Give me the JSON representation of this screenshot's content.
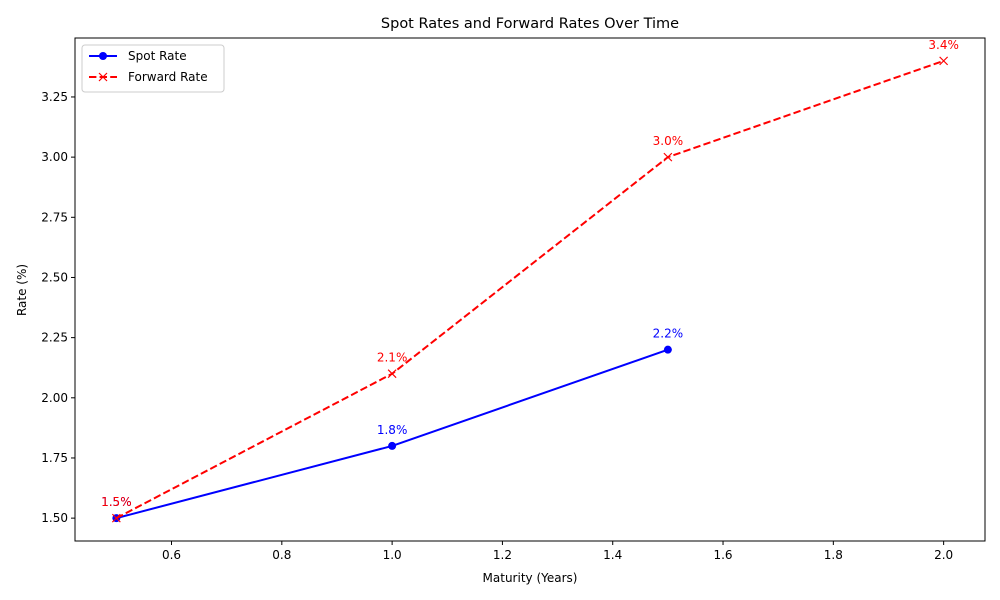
{
  "chart_data": {
    "type": "line",
    "title": "Spot Rates and Forward Rates Over Time",
    "xlabel": "Maturity (Years)",
    "ylabel": "Rate (%)",
    "xlim": [
      0.425,
      2.075
    ],
    "ylim": [
      1.405,
      3.495
    ],
    "x_ticks": [
      0.6,
      0.8,
      1.0,
      1.2,
      1.4,
      1.6,
      1.8,
      2.0
    ],
    "x_tick_labels": [
      "0.6",
      "0.8",
      "1.0",
      "1.2",
      "1.4",
      "1.6",
      "1.8",
      "2.0"
    ],
    "y_ticks": [
      1.5,
      1.75,
      2.0,
      2.25,
      2.5,
      2.75,
      3.0,
      3.25
    ],
    "y_tick_labels": [
      "1.50",
      "1.75",
      "2.00",
      "2.25",
      "2.50",
      "2.75",
      "3.00",
      "3.25"
    ],
    "grid": false,
    "legend_position": "top-left",
    "series": [
      {
        "name": "Spot Rate",
        "color": "#0000ff",
        "line_style": "solid",
        "marker": "circle",
        "x": [
          0.5,
          1.0,
          1.5
        ],
        "y": [
          1.5,
          1.8,
          2.2
        ],
        "labels": [
          "1.5%",
          "1.8%",
          "2.2%"
        ]
      },
      {
        "name": "Forward Rate",
        "color": "#ff0000",
        "line_style": "dashed",
        "marker": "x",
        "x": [
          0.5,
          1.0,
          1.5,
          2.0
        ],
        "y": [
          1.5,
          2.1,
          3.0,
          3.4
        ],
        "labels": [
          "1.5%",
          "2.1%",
          "3.0%",
          "3.4%"
        ]
      }
    ]
  }
}
